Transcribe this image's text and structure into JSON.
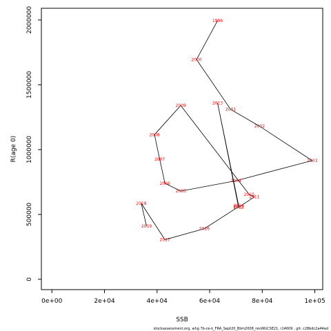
{
  "chart_data": {
    "type": "scatter",
    "xlabel": "SSB",
    "ylabel": "R(age 0)",
    "xlim": [
      -4000,
      103000
    ],
    "ylim": [
      -80000,
      2090000
    ],
    "x_ticks": [
      0,
      20000,
      40000,
      60000,
      80000,
      100000
    ],
    "x_tick_labels": [
      "0e+00",
      "2e+04",
      "4e+04",
      "6e+04",
      "8e+04",
      "1e+05"
    ],
    "y_ticks": [
      0,
      500000,
      1000000,
      1500000,
      2000000
    ],
    "y_tick_labels": [
      "0",
      "500000",
      "1000000",
      "1500000",
      "2000000"
    ],
    "grid": false,
    "point_labels_color": "#ff0000",
    "line_color": "#000000",
    "points": [
      {
        "label": "1999",
        "x": 63000,
        "y": 1995000
      },
      {
        "label": "2000",
        "x": 55000,
        "y": 1695000
      },
      {
        "label": "2001",
        "x": 68000,
        "y": 1310000
      },
      {
        "label": "2002",
        "x": 79000,
        "y": 1180000
      },
      {
        "label": "2003",
        "x": 99000,
        "y": 915000
      },
      {
        "label": "2004",
        "x": 70000,
        "y": 760000
      },
      {
        "label": "2005",
        "x": 49000,
        "y": 680000
      },
      {
        "label": "2006",
        "x": 43000,
        "y": 740000
      },
      {
        "label": "2007",
        "x": 41000,
        "y": 925000
      },
      {
        "label": "2008",
        "x": 39000,
        "y": 1115000
      },
      {
        "label": "2009",
        "x": 49000,
        "y": 1340000
      },
      {
        "label": "2010",
        "x": 75000,
        "y": 655000
      },
      {
        "label": "2011",
        "x": 77000,
        "y": 635000
      },
      {
        "label": "2012",
        "x": 71000,
        "y": 555000
      },
      {
        "label": "2013",
        "x": 63000,
        "y": 1360000
      },
      {
        "label": "2014",
        "x": 71000,
        "y": 570000
      },
      {
        "label": "2015",
        "x": 71000,
        "y": 560000
      },
      {
        "label": "2016",
        "x": 58000,
        "y": 390000
      },
      {
        "label": "2017",
        "x": 43000,
        "y": 305000
      },
      {
        "label": "2018",
        "x": 34000,
        "y": 585000
      },
      {
        "label": "2019",
        "x": 36000,
        "y": 410000
      }
    ]
  },
  "footer": "stockassessment.org, whg.7b-ce-k_FRA_Sept20_Blim2008_revWGCSE21, r14609 , git: c28bdc2a44ad"
}
